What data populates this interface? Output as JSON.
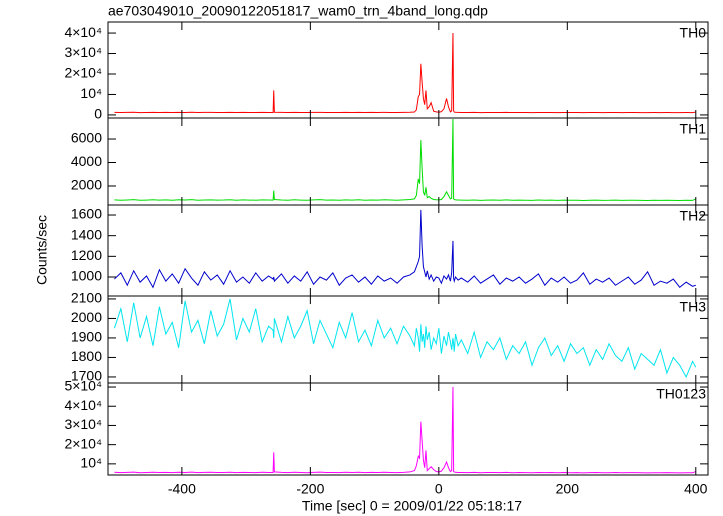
{
  "chart_data": {
    "type": "line",
    "title": "ae703049010_20090122051817_wam0_trn_4band_long.qdp",
    "xlabel": "Time [sec] 0 = 2009/01/22 05:18:17",
    "ylabel": "Counts/sec",
    "xlim": [
      -515,
      419
    ],
    "xticks": [
      -400,
      -200,
      0,
      200,
      400
    ],
    "x": [
      -505,
      -495,
      -485,
      -475,
      -465,
      -455,
      -445,
      -435,
      -425,
      -415,
      -405,
      -395,
      -385,
      -375,
      -365,
      -355,
      -345,
      -335,
      -325,
      -315,
      -305,
      -295,
      -285,
      -275,
      -265,
      -258,
      -257,
      -256,
      -245,
      -235,
      -225,
      -215,
      -205,
      -195,
      -185,
      -175,
      -165,
      -155,
      -145,
      -135,
      -125,
      -115,
      -105,
      -95,
      -85,
      -75,
      -65,
      -55,
      -45,
      -38,
      -35,
      -32,
      -30,
      -28,
      -26,
      -24,
      -22,
      -20,
      -18,
      -15,
      -12,
      -8,
      -4,
      0,
      4,
      8,
      12,
      15,
      18,
      20,
      22,
      23,
      24,
      26,
      30,
      35,
      45,
      55,
      65,
      75,
      85,
      95,
      105,
      115,
      125,
      135,
      145,
      155,
      165,
      175,
      185,
      195,
      205,
      215,
      225,
      235,
      245,
      255,
      265,
      275,
      285,
      295,
      305,
      315,
      325,
      335,
      345,
      355,
      365,
      375,
      385,
      395,
      400
    ],
    "series": [
      {
        "name": "TH0",
        "color": "#ff0000",
        "ylim": [
          -1500,
          45400
        ],
        "yticks": [
          0,
          {
            "value": 10000,
            "label": "10⁴"
          },
          {
            "value": 20000,
            "label": "2×10⁴"
          },
          {
            "value": 30000,
            "label": "3×10⁴"
          },
          {
            "value": 40000,
            "label": "4×10⁴"
          }
        ],
        "values": [
          1250,
          1180,
          1220,
          1300,
          1150,
          1210,
          1270,
          1190,
          1230,
          1160,
          1240,
          1200,
          1280,
          1170,
          1220,
          1250,
          1190,
          1210,
          1260,
          1180,
          1230,
          1200,
          1170,
          1240,
          1210,
          1200,
          12000,
          1300,
          1220,
          1180,
          1250,
          1200,
          1160,
          1230,
          1270,
          1190,
          1210,
          1180,
          1240,
          1200,
          1260,
          1170,
          1220,
          1190,
          1250,
          1210,
          1180,
          1230,
          1300,
          1400,
          2500,
          9000,
          10000,
          25000,
          16000,
          8000,
          5000,
          12000,
          3000,
          4000,
          6000,
          1800,
          1500,
          1300,
          1600,
          3000,
          8000,
          4000,
          1500,
          2000,
          40000,
          2000,
          1400,
          1300,
          1250,
          1200,
          1180,
          1220,
          1150,
          1190,
          1210,
          1170,
          1230,
          1160,
          1200,
          1180,
          1140,
          1210,
          1170,
          1190,
          1150,
          1200,
          1160,
          1180,
          1130,
          1170,
          1190,
          1150,
          1160,
          1200,
          1140,
          1170,
          1180,
          1150,
          1130,
          1160,
          1140,
          1170,
          1150,
          1120,
          1160,
          1140,
          1400
        ]
      },
      {
        "name": "TH1",
        "color": "#00dd00",
        "ylim": [
          380,
          7790
        ],
        "yticks": [
          2000,
          4000,
          6000
        ],
        "values": [
          820,
          790,
          810,
          840,
          780,
          800,
          830,
          795,
          815,
          785,
          825,
          805,
          835,
          790,
          810,
          820,
          795,
          805,
          830,
          785,
          815,
          800,
          790,
          820,
          805,
          800,
          1600,
          850,
          810,
          790,
          825,
          800,
          780,
          815,
          835,
          795,
          805,
          790,
          820,
          800,
          830,
          785,
          810,
          795,
          825,
          805,
          790,
          815,
          850,
          900,
          1200,
          2600,
          2200,
          5900,
          3500,
          1500,
          1200,
          1900,
          1000,
          1100,
          950,
          850,
          830,
          820,
          850,
          1100,
          1500,
          1200,
          900,
          950,
          7700,
          900,
          850,
          820,
          810,
          800,
          790,
          810,
          775,
          795,
          805,
          785,
          815,
          780,
          800,
          790,
          770,
          805,
          785,
          795,
          775,
          800,
          780,
          790,
          765,
          785,
          795,
          775,
          780,
          800,
          770,
          785,
          790,
          775,
          765,
          780,
          770,
          785,
          775,
          760,
          780,
          770,
          900
        ]
      },
      {
        "name": "TH2",
        "color": "#0000cc",
        "ylim": [
          816,
          1697
        ],
        "yticks": [
          1000,
          1200,
          1400,
          1600
        ],
        "values": [
          980,
          1040,
          920,
          1060,
          950,
          1010,
          900,
          1070,
          960,
          1030,
          940,
          1080,
          990,
          920,
          1050,
          970,
          1020,
          930,
          1060,
          950,
          1000,
          940,
          1040,
          960,
          1010,
          980,
          1000,
          960,
          1030,
          940,
          1010,
          960,
          1050,
          930,
          1000,
          970,
          1040,
          920,
          990,
          1020,
          950,
          1000,
          930,
          1010,
          960,
          990,
          940,
          1000,
          1020,
          1050,
          1100,
          1150,
          1200,
          1650,
          1300,
          1100,
          1050,
          1000,
          1060,
          980,
          1020,
          960,
          1000,
          990,
          940,
          1010,
          980,
          1020,
          960,
          1040,
          1350,
          990,
          960,
          1000,
          970,
          990,
          950,
          1010,
          940,
          980,
          1020,
          930,
          990,
          960,
          1000,
          940,
          980,
          1030,
          920,
          990,
          950,
          1000,
          940,
          970,
          1040,
          930,
          980,
          950,
          990,
          920,
          960,
          1000,
          930,
          970,
          1050,
          920,
          960,
          940,
          980,
          900,
          950,
          910,
          920
        ]
      },
      {
        "name": "TH3",
        "color": "#00e5ee",
        "ylim": [
          1669,
          2115
        ],
        "yticks": [
          1700,
          1800,
          1900,
          2000,
          2100
        ],
        "values": [
          1950,
          2050,
          1880,
          2080,
          1900,
          2010,
          1860,
          2060,
          1920,
          1980,
          1850,
          2090,
          1930,
          1990,
          1870,
          2040,
          1910,
          1970,
          2100,
          1890,
          2000,
          1930,
          2050,
          1880,
          1960,
          1940,
          1900,
          2000,
          1880,
          2010,
          1900,
          1960,
          2040,
          1870,
          1990,
          1920,
          1850,
          1980,
          1900,
          2030,
          1880,
          1940,
          1860,
          1990,
          1900,
          1950,
          1870,
          1960,
          1910,
          1860,
          1950,
          1900,
          1830,
          1970,
          1880,
          1920,
          1850,
          1960,
          1890,
          1930,
          1840,
          1900,
          1870,
          1950,
          1820,
          1910,
          1860,
          1930,
          1880,
          1840,
          1900,
          1870,
          1830,
          1920,
          1860,
          1890,
          1820,
          1930,
          1800,
          1880,
          1840,
          1900,
          1790,
          1860,
          1820,
          1880,
          1760,
          1850,
          1900,
          1810,
          1860,
          1780,
          1870,
          1820,
          1850,
          1760,
          1840,
          1790,
          1870,
          1810,
          1780,
          1850,
          1740,
          1820,
          1790,
          1760,
          1840,
          1720,
          1800,
          1760,
          1700,
          1780,
          1750
        ]
      },
      {
        "name": "TH0123",
        "color": "#ff00ff",
        "ylim": [
          4200,
          52100
        ],
        "yticks": [
          {
            "value": 10000,
            "label": "10⁴"
          },
          {
            "value": 20000,
            "label": "2×10⁴"
          },
          {
            "value": 30000,
            "label": "3×10⁴"
          },
          {
            "value": 40000,
            "label": "4×10⁴"
          },
          {
            "value": 50000,
            "label": "5×10⁴"
          }
        ],
        "values": [
          5600,
          5450,
          5550,
          5700,
          5400,
          5500,
          5650,
          5480,
          5580,
          5420,
          5620,
          5500,
          5680,
          5450,
          5550,
          5600,
          5480,
          5520,
          5650,
          5440,
          5580,
          5500,
          5450,
          5600,
          5520,
          5500,
          16000,
          5800,
          5550,
          5450,
          5620,
          5500,
          5400,
          5580,
          5680,
          5480,
          5520,
          5450,
          5600,
          5500,
          5660,
          5430,
          5550,
          5470,
          5620,
          5520,
          5450,
          5580,
          5800,
          6500,
          9000,
          14000,
          13000,
          32000,
          22000,
          12000,
          8000,
          17000,
          6500,
          7500,
          8500,
          7000,
          6000,
          5800,
          6200,
          8000,
          11000,
          8000,
          6000,
          6500,
          50000,
          6000,
          5800,
          5600,
          5500,
          5500,
          5450,
          5550,
          5400,
          5480,
          5520,
          5420,
          5580,
          5400,
          5500,
          5450,
          5350,
          5520,
          5420,
          5480,
          5380,
          5500,
          5400,
          5450,
          5320,
          5420,
          5480,
          5380,
          5400,
          5500,
          5350,
          5420,
          5450,
          5380,
          5320,
          5400,
          5350,
          5420,
          5380,
          5300,
          5400,
          5350,
          6000
        ]
      }
    ]
  }
}
